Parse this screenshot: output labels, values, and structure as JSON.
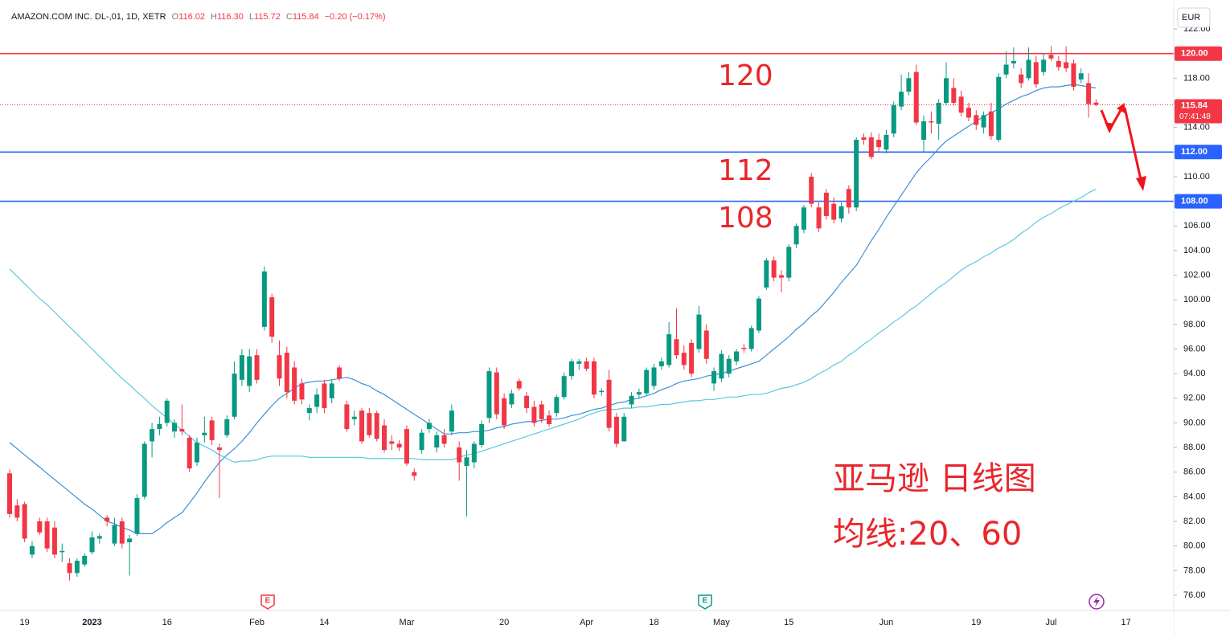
{
  "chart_data": {
    "type": "candlestick",
    "symbol": "AMAZON.COM INC. DL-,01, 1D, XETR",
    "legend": [
      {
        "key": "O",
        "value": "116.02"
      },
      {
        "key": "H",
        "value": "116.30"
      },
      {
        "key": "L",
        "value": "115.72"
      },
      {
        "key": "C",
        "value": "115.84"
      }
    ],
    "change": "−0.20 (−0.17%)",
    "currency": "EUR",
    "countdown": "07:41:48",
    "up_color": "#089981",
    "down_color": "#f23645",
    "grid": false,
    "ylim": [
      74.76,
      123.83
    ],
    "yticks": [
      {
        "value": 76,
        "label": "76.00"
      },
      {
        "value": 78,
        "label": "78.00"
      },
      {
        "value": 80,
        "label": "80.00"
      },
      {
        "value": 82,
        "label": "82.00"
      },
      {
        "value": 84,
        "label": "84.00"
      },
      {
        "value": 86,
        "label": "86.00"
      },
      {
        "value": 88,
        "label": "88.00"
      },
      {
        "value": 90,
        "label": "90.00"
      },
      {
        "value": 92,
        "label": "92.00"
      },
      {
        "value": 94,
        "label": "94.00"
      },
      {
        "value": 96,
        "label": "96.00"
      },
      {
        "value": 98,
        "label": "98.00"
      },
      {
        "value": 100,
        "label": "100.00"
      },
      {
        "value": 102,
        "label": "102.00"
      },
      {
        "value": 104,
        "label": "104.00"
      },
      {
        "value": 106,
        "label": "106.00"
      },
      {
        "value": 108,
        "label": "108.00"
      },
      {
        "value": 110,
        "label": "110.00"
      },
      {
        "value": 112,
        "label": "112.00"
      },
      {
        "value": 114,
        "label": "114.00"
      },
      {
        "value": 116,
        "label": "116.00"
      },
      {
        "value": 118,
        "label": "118.00"
      },
      {
        "value": 120,
        "label": "120.00"
      },
      {
        "value": 122,
        "label": "122.00"
      }
    ],
    "hlines": [
      {
        "value": 120,
        "label": "120.00",
        "color": "#f23645"
      },
      {
        "value": 112,
        "label": "112.00",
        "color": "#2962ff"
      },
      {
        "value": 108,
        "label": "108.00",
        "color": "#2962ff"
      }
    ],
    "annotations": [
      120,
      112,
      108
    ],
    "notes": [
      "亚马逊 日线图",
      "均线:20、60"
    ],
    "events": [
      "E",
      "E"
    ],
    "categories": [
      null,
      null,
      "19",
      null,
      null,
      null,
      null,
      null,
      null,
      null,
      null,
      "2023",
      null,
      null,
      null,
      null,
      null,
      null,
      null,
      null,
      null,
      "16",
      null,
      null,
      null,
      null,
      null,
      null,
      null,
      null,
      null,
      null,
      null,
      "Feb",
      null,
      null,
      null,
      null,
      null,
      null,
      null,
      null,
      "14",
      null,
      null,
      null,
      null,
      null,
      null,
      null,
      null,
      null,
      null,
      "Mar",
      null,
      null,
      null,
      null,
      null,
      null,
      null,
      null,
      null,
      null,
      null,
      null,
      "20",
      null,
      null,
      null,
      null,
      null,
      null,
      null,
      null,
      null,
      null,
      "Apr",
      null,
      null,
      null,
      null,
      null,
      null,
      null,
      null,
      "18",
      null,
      null,
      null,
      null,
      null,
      null,
      null,
      null,
      "May",
      null,
      null,
      null,
      null,
      null,
      null,
      null,
      null,
      "15",
      null,
      null,
      null,
      null,
      null,
      null,
      null,
      null,
      null,
      null,
      null,
      null,
      "Jun",
      null,
      null,
      null,
      null,
      null,
      null,
      null,
      null,
      null,
      null,
      null,
      "19",
      null,
      null,
      null,
      null,
      null,
      null,
      null,
      null,
      null,
      "Jul",
      null,
      null,
      null,
      null,
      null,
      null,
      null,
      null,
      null,
      "17"
    ],
    "open": [
      85.9,
      83.3,
      83.4,
      79.3,
      82.0,
      82.0,
      81.5,
      79.5,
      78.6,
      77.8,
      78.5,
      79.5,
      80.6,
      82.3,
      80.2,
      82.0,
      80.3,
      81.0,
      84.0,
      88.5,
      89.5,
      90.0,
      89.3,
      89.5,
      88.8,
      86.8,
      89.0,
      90.2,
      88.0,
      89.0,
      90.5,
      93.5,
      93.0,
      95.5,
      97.8,
      100.2,
      95.5,
      95.7,
      94.5,
      93.2,
      90.8,
      91.3,
      93.2,
      92.0,
      94.5,
      91.5,
      90.3,
      91.0,
      90.8,
      90.8,
      89.8,
      88.5,
      88.3,
      89.5,
      86.0,
      87.8,
      89.5,
      88.0,
      89.0,
      89.3,
      88.0,
      86.5,
      86.8,
      88.2,
      90.4,
      94.1,
      92.0,
      91.5,
      93.4,
      92.2,
      91.3,
      91.5,
      90.6,
      90.8,
      92.1,
      93.8,
      94.8,
      95.0,
      95.0,
      92.5,
      93.5,
      90.5,
      88.5,
      91.5,
      92.3,
      92.4,
      93.0,
      94.6,
      94.7,
      96.8,
      95.7,
      96.5,
      96.0,
      97.5,
      93.2,
      93.6,
      94.0,
      95.0,
      96.1,
      96.0,
      97.5,
      101.0,
      103.2,
      102.0,
      101.8,
      104.5,
      105.7,
      110.0,
      107.5,
      108.7,
      107.8,
      106.6,
      109.0,
      107.5,
      113.2,
      113.2,
      113.0,
      112.2,
      113.5,
      115.7,
      116.9,
      118.5,
      113.0,
      114.5,
      114.3,
      116.0,
      117.2,
      116.5,
      115.6,
      115.0,
      114.0,
      115.3,
      113.0,
      118.3,
      119.2,
      118.3,
      118.0,
      119.3,
      118.5,
      119.9,
      119.4,
      119.3,
      119.2,
      117.9,
      117.6,
      116.02,
      null,
      null,
      null,
      null
    ],
    "high": [
      86.2,
      83.8,
      83.6,
      80.4,
      82.3,
      82.3,
      82.0,
      80.2,
      79.0,
      79.0,
      79.4,
      81.2,
      81.0,
      82.5,
      82.3,
      82.3,
      80.9,
      84.2,
      88.5,
      90.0,
      90.5,
      92.0,
      90.3,
      91.5,
      89.0,
      88.8,
      90.5,
      90.5,
      88.3,
      90.6,
      95.0,
      96.0,
      96.0,
      96.0,
      102.7,
      100.5,
      96.7,
      96.2,
      95.0,
      93.6,
      91.5,
      92.8,
      93.5,
      93.5,
      94.7,
      91.8,
      91.0,
      91.2,
      91.2,
      91.0,
      90.3,
      89.0,
      88.6,
      89.8,
      86.3,
      89.5,
      90.3,
      89.3,
      89.5,
      91.5,
      88.5,
      87.8,
      88.5,
      90.2,
      94.5,
      94.5,
      92.4,
      92.7,
      93.6,
      92.5,
      91.8,
      91.8,
      91.0,
      92.3,
      94.1,
      95.2,
      95.2,
      95.3,
      95.3,
      92.8,
      94.3,
      90.8,
      90.8,
      92.5,
      92.8,
      94.5,
      94.8,
      95.3,
      98.2,
      99.3,
      96.3,
      96.8,
      99.5,
      98.0,
      94.5,
      95.9,
      95.5,
      96.0,
      96.4,
      97.9,
      100.3,
      103.4,
      103.5,
      102.4,
      104.5,
      106.2,
      107.7,
      110.3,
      107.9,
      109.0,
      108.3,
      107.9,
      109.3,
      113.2,
      113.5,
      113.6,
      113.5,
      113.8,
      116.1,
      118.3,
      118.5,
      119.1,
      115.0,
      115.3,
      116.3,
      119.3,
      118.0,
      117.0,
      116.0,
      115.4,
      115.3,
      116.0,
      118.4,
      120.2,
      120.5,
      118.8,
      120.5,
      119.8,
      120.0,
      120.6,
      119.8,
      120.6,
      119.5,
      118.8,
      118.4,
      116.3,
      null,
      null,
      null,
      null
    ],
    "low": [
      82.3,
      82.0,
      80.3,
      79.0,
      80.9,
      79.5,
      79.0,
      78.7,
      77.2,
      77.5,
      78.3,
      79.3,
      80.2,
      81.6,
      80.0,
      79.8,
      77.6,
      80.8,
      83.8,
      87.2,
      89.0,
      89.7,
      88.8,
      89.0,
      86.0,
      86.5,
      88.4,
      88.2,
      83.9,
      88.8,
      90.3,
      93.0,
      92.5,
      93.2,
      97.5,
      96.5,
      93.0,
      92.0,
      91.5,
      91.5,
      90.2,
      90.8,
      90.8,
      91.6,
      93.4,
      89.3,
      89.8,
      88.3,
      88.8,
      88.5,
      87.6,
      87.8,
      87.7,
      86.5,
      85.3,
      87.5,
      89.2,
      87.6,
      88.0,
      89.0,
      85.3,
      82.4,
      86.3,
      88.0,
      90.0,
      90.3,
      89.5,
      91.2,
      92.6,
      90.8,
      89.7,
      90.0,
      89.7,
      90.5,
      91.9,
      93.5,
      94.3,
      94.2,
      92.0,
      92.2,
      89.3,
      88.0,
      88.5,
      91.2,
      92.0,
      92.2,
      92.7,
      94.3,
      94.5,
      95.2,
      94.3,
      93.7,
      95.7,
      94.8,
      92.6,
      93.3,
      93.7,
      94.7,
      95.7,
      95.8,
      97.3,
      100.8,
      101.5,
      100.6,
      101.5,
      104.2,
      105.4,
      107.5,
      105.5,
      106.5,
      106.2,
      106.3,
      107.0,
      107.2,
      112.6,
      111.4,
      112.0,
      111.9,
      113.2,
      115.4,
      116.6,
      114.2,
      112.0,
      113.5,
      113.0,
      115.8,
      115.8,
      114.9,
      114.5,
      113.8,
      113.5,
      113.0,
      112.8,
      118.0,
      118.8,
      117.2,
      117.8,
      117.2,
      118.2,
      119.4,
      118.6,
      118.5,
      117.0,
      117.6,
      114.8,
      115.72,
      null,
      null,
      null,
      null
    ],
    "close": [
      82.6,
      82.3,
      80.6,
      80.0,
      81.1,
      79.8,
      79.3,
      79.6,
      77.8,
      78.8,
      79.2,
      80.7,
      80.8,
      82.0,
      81.7,
      80.2,
      80.6,
      83.9,
      88.3,
      89.5,
      89.9,
      91.8,
      90.0,
      89.3,
      86.3,
      88.4,
      89.2,
      88.6,
      87.8,
      90.3,
      94.0,
      95.5,
      95.4,
      93.5,
      102.3,
      97.0,
      93.6,
      92.5,
      91.8,
      91.9,
      91.2,
      92.3,
      91.2,
      93.2,
      93.6,
      89.5,
      90.5,
      88.5,
      89.0,
      88.7,
      87.8,
      88.3,
      88.0,
      86.7,
      85.7,
      89.2,
      90.0,
      89.0,
      88.3,
      91.0,
      86.8,
      87.2,
      88.3,
      89.9,
      94.2,
      90.7,
      89.8,
      92.4,
      92.8,
      91.2,
      90.0,
      90.3,
      89.9,
      92.1,
      93.8,
      95.0,
      95.0,
      94.4,
      92.3,
      92.6,
      89.6,
      88.3,
      90.5,
      92.2,
      92.5,
      94.3,
      94.5,
      95.0,
      97.2,
      95.5,
      94.7,
      94.0,
      98.8,
      95.2,
      94.2,
      95.6,
      95.2,
      95.8,
      96.0,
      97.7,
      100.1,
      103.2,
      101.8,
      101.8,
      104.3,
      106.0,
      107.5,
      107.8,
      105.8,
      106.8,
      106.5,
      107.6,
      107.5,
      113.0,
      113.0,
      111.6,
      112.4,
      113.4,
      115.8,
      116.9,
      118.0,
      114.4,
      114.5,
      114.4,
      116.0,
      118.0,
      116.0,
      115.2,
      114.8,
      114.2,
      115.0,
      113.3,
      118.1,
      119.1,
      119.4,
      117.6,
      119.5,
      117.5,
      119.5,
      119.6,
      118.9,
      118.8,
      117.3,
      118.4,
      115.9,
      115.84,
      null,
      null,
      null,
      null
    ],
    "ma_lines": [
      {
        "color": "#3d8fd6",
        "values": [
          88.4,
          87.9,
          87.4,
          86.9,
          86.4,
          85.9,
          85.4,
          84.9,
          84.4,
          83.9,
          83.4,
          83.0,
          82.5,
          82.0,
          81.8,
          81.5,
          81.3,
          81.0,
          81.0,
          81.0,
          81.4,
          81.9,
          82.3,
          82.7,
          83.5,
          84.3,
          85.2,
          86.0,
          86.8,
          87.4,
          87.9,
          88.5,
          89.2,
          90.0,
          90.7,
          91.4,
          92.0,
          92.4,
          92.8,
          93.2,
          93.3,
          93.4,
          93.4,
          93.5,
          93.6,
          93.7,
          93.5,
          93.2,
          93.0,
          92.6,
          92.3,
          91.9,
          91.5,
          91.1,
          90.7,
          90.3,
          89.9,
          89.5,
          89.1,
          89.1,
          89.2,
          89.2,
          89.3,
          89.3,
          89.4,
          89.6,
          89.7,
          89.9,
          90.0,
          90.1,
          90.1,
          90.2,
          90.3,
          90.3,
          90.4,
          90.6,
          90.7,
          90.9,
          91.1,
          91.2,
          91.4,
          91.6,
          91.7,
          91.9,
          92.0,
          92.2,
          92.4,
          92.7,
          92.9,
          93.2,
          93.4,
          93.5,
          93.6,
          93.8,
          93.9,
          94.0,
          94.2,
          94.4,
          94.6,
          94.8,
          95.0,
          95.5,
          96.0,
          96.5,
          97.0,
          97.6,
          98.1,
          98.7,
          99.2,
          99.9,
          100.6,
          101.4,
          102.1,
          102.8,
          103.8,
          104.8,
          105.7,
          106.7,
          107.6,
          108.5,
          109.4,
          110.3,
          111.0,
          111.6,
          112.3,
          112.9,
          113.3,
          113.7,
          114.1,
          114.5,
          114.9,
          115.2,
          115.5,
          115.9,
          116.2,
          116.5,
          116.7,
          117.0,
          117.2,
          117.3,
          117.3,
          117.4,
          117.5,
          117.4,
          117.3,
          117.2,
          null,
          null,
          null,
          null
        ]
      },
      {
        "color": "#5cc8e0",
        "values": [
          102.5,
          101.9,
          101.3,
          100.7,
          100.1,
          99.6,
          99.0,
          98.4,
          97.8,
          97.2,
          96.6,
          96.0,
          95.4,
          94.8,
          94.2,
          93.6,
          93.1,
          92.5,
          92.0,
          91.4,
          90.9,
          90.4,
          89.9,
          89.4,
          88.9,
          88.4,
          88.1,
          87.8,
          87.4,
          87.1,
          86.8,
          86.9,
          86.9,
          87.0,
          87.2,
          87.3,
          87.3,
          87.3,
          87.3,
          87.3,
          87.2,
          87.2,
          87.2,
          87.2,
          87.2,
          87.2,
          87.2,
          87.2,
          87.1,
          87.1,
          87.1,
          87.1,
          87.1,
          87.1,
          87.1,
          87.0,
          87.0,
          87.0,
          87.0,
          87.0,
          87.2,
          87.4,
          87.5,
          87.7,
          87.9,
          88.1,
          88.3,
          88.5,
          88.7,
          88.9,
          89.1,
          89.3,
          89.5,
          89.7,
          89.9,
          90.1,
          90.3,
          90.6,
          90.8,
          91.0,
          91.1,
          91.1,
          91.2,
          91.2,
          91.3,
          91.3,
          91.4,
          91.5,
          91.5,
          91.6,
          91.7,
          91.8,
          91.8,
          91.9,
          91.9,
          92.0,
          92.1,
          92.1,
          92.2,
          92.3,
          92.3,
          92.4,
          92.6,
          92.8,
          92.9,
          93.1,
          93.3,
          93.6,
          94.0,
          94.3,
          94.7,
          95.0,
          95.5,
          95.9,
          96.4,
          96.8,
          97.3,
          97.7,
          98.2,
          98.6,
          99.1,
          99.5,
          100.0,
          100.5,
          101.0,
          101.4,
          101.9,
          102.4,
          102.8,
          103.1,
          103.5,
          103.8,
          104.2,
          104.5,
          104.9,
          105.4,
          105.8,
          106.3,
          106.7,
          107.0,
          107.4,
          107.7,
          108.0,
          108.3,
          108.7,
          109.0,
          null,
          null,
          null,
          null
        ]
      }
    ]
  }
}
